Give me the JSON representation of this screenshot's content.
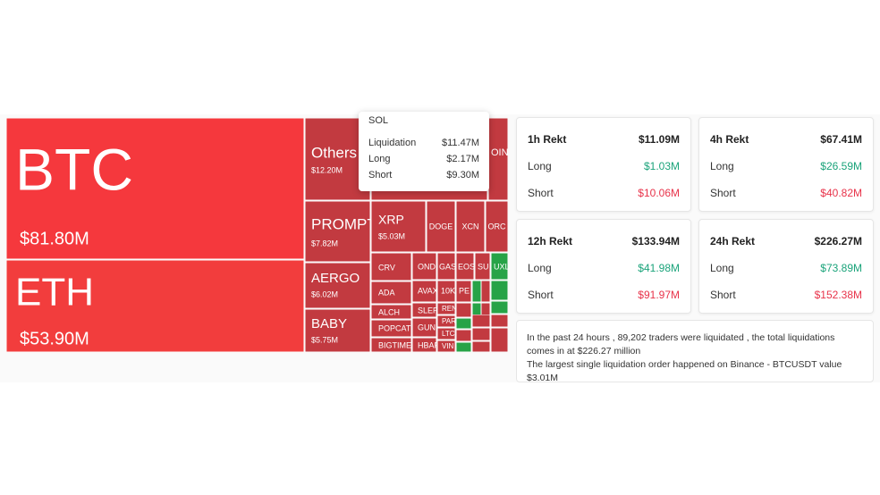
{
  "treemap": {
    "tiles": [
      {
        "symbol": "BTC",
        "value": "$81.80M"
      },
      {
        "symbol": "ETH",
        "value": "$53.90M"
      },
      {
        "symbol": "Others",
        "value": "$12.20M"
      },
      {
        "symbol": "PROMPT",
        "value": "$7.82M"
      },
      {
        "symbol": "AERGO",
        "value": "$6.02M"
      },
      {
        "symbol": "BABY",
        "value": "$5.75M"
      },
      {
        "symbol": "XRP",
        "value": "$5.03M"
      },
      {
        "symbol": "OIN"
      },
      {
        "symbol": "DOGE"
      },
      {
        "symbol": "XCN"
      },
      {
        "symbol": "ORC"
      },
      {
        "symbol": "CRV"
      },
      {
        "symbol": "ADA"
      },
      {
        "symbol": "ALCH"
      },
      {
        "symbol": "POPCAT"
      },
      {
        "symbol": "BIGTIME"
      },
      {
        "symbol": "OND"
      },
      {
        "symbol": "AVAX"
      },
      {
        "symbol": "SLER"
      },
      {
        "symbol": "GUN"
      },
      {
        "symbol": "HBAR"
      },
      {
        "symbol": "GAS"
      },
      {
        "symbol": "10K"
      },
      {
        "symbol": "REN"
      },
      {
        "symbol": "PAR"
      },
      {
        "symbol": "LTC"
      },
      {
        "symbol": "VIN"
      },
      {
        "symbol": "EOS"
      },
      {
        "symbol": "PE"
      },
      {
        "symbol": "SU"
      },
      {
        "symbol": "UXL"
      }
    ]
  },
  "tooltip": {
    "symbol": "SOL",
    "rows": [
      [
        "Liquidation",
        "$11.47M"
      ],
      [
        "Long",
        "$2.17M"
      ],
      [
        "Short",
        "$9.30M"
      ]
    ]
  },
  "cards": [
    {
      "label": "1h Rekt",
      "total": "$11.09M",
      "long_label": "Long",
      "long": "$1.03M",
      "short_label": "Short",
      "short": "$10.06M"
    },
    {
      "label": "4h Rekt",
      "total": "$67.41M",
      "long_label": "Long",
      "long": "$26.59M",
      "short_label": "Short",
      "short": "$40.82M"
    },
    {
      "label": "12h Rekt",
      "total": "$133.94M",
      "long_label": "Long",
      "long": "$41.98M",
      "short_label": "Short",
      "short": "$91.97M"
    },
    {
      "label": "24h Rekt",
      "total": "$226.27M",
      "long_label": "Long",
      "long": "$73.89M",
      "short_label": "Short",
      "short": "$152.38M"
    }
  ],
  "info": {
    "lines": [
      "In the past 24 hours , 89,202 traders were liquidated , the total liquidations comes in at $226.27 million",
      "The largest single liquidation order happened on Binance - BTCUSDT value $3.01M"
    ]
  }
}
